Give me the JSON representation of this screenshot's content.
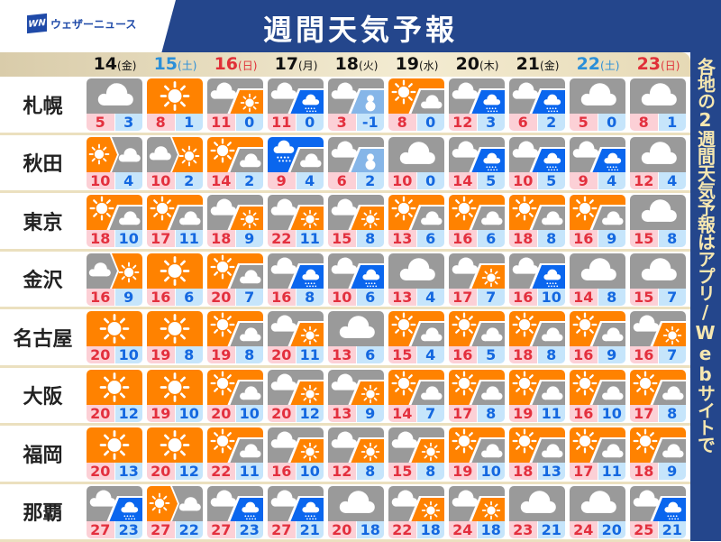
{
  "header": {
    "logo_mark": "WN",
    "logo_text": "ウェザーニュース",
    "title": "週間天気予報"
  },
  "side_text": "各地の2週間天気予報はアプリ/Webサイトで",
  "colors": {
    "cloud": "#9a9a9a",
    "sun": "#ff8200",
    "rain": "#0a66ee",
    "snow": "#86b6e8",
    "weekday": "#111111",
    "saturday": "#2b8fd8",
    "sunday": "#e03038",
    "high": "#e3303e",
    "low": "#1468e0"
  },
  "dates": [
    {
      "day": "14",
      "weekday": "(金)",
      "kind": "weekday"
    },
    {
      "day": "15",
      "weekday": "(土)",
      "kind": "saturday"
    },
    {
      "day": "16",
      "weekday": "(日)",
      "kind": "sunday"
    },
    {
      "day": "17",
      "weekday": "(月)",
      "kind": "weekday"
    },
    {
      "day": "18",
      "weekday": "(火)",
      "kind": "weekday"
    },
    {
      "day": "19",
      "weekday": "(水)",
      "kind": "weekday"
    },
    {
      "day": "20",
      "weekday": "(木)",
      "kind": "weekday"
    },
    {
      "day": "21",
      "weekday": "(金)",
      "kind": "weekday"
    },
    {
      "day": "22",
      "weekday": "(土)",
      "kind": "saturday"
    },
    {
      "day": "23",
      "weekday": "(日)",
      "kind": "sunday"
    }
  ],
  "cities": [
    {
      "name": "札幌",
      "days": [
        {
          "w": "cloud",
          "hi": "5",
          "lo": "3"
        },
        {
          "w": "sun",
          "hi": "8",
          "lo": "1"
        },
        {
          "w": "cloud/sun",
          "hi": "11",
          "lo": "0"
        },
        {
          "w": "cloud/rain",
          "hi": "11",
          "lo": "0"
        },
        {
          "w": "cloud/snow",
          "hi": "3",
          "lo": "-1"
        },
        {
          "w": "sun/cloud",
          "hi": "8",
          "lo": "0"
        },
        {
          "w": "cloud/rain",
          "hi": "12",
          "lo": "3"
        },
        {
          "w": "cloud/rain",
          "hi": "6",
          "lo": "2"
        },
        {
          "w": "cloud",
          "hi": "5",
          "lo": "0"
        },
        {
          "w": "cloud",
          "hi": "8",
          "lo": "1"
        }
      ]
    },
    {
      "name": "秋田",
      "days": [
        {
          "w": "sun>cloud",
          "hi": "10",
          "lo": "4"
        },
        {
          "w": "cloud>sun",
          "hi": "10",
          "lo": "2"
        },
        {
          "w": "sun/cloud",
          "hi": "14",
          "lo": "2"
        },
        {
          "w": "rain/cloud",
          "hi": "9",
          "lo": "4"
        },
        {
          "w": "cloud/snow",
          "hi": "6",
          "lo": "2"
        },
        {
          "w": "cloud",
          "hi": "10",
          "lo": "0"
        },
        {
          "w": "cloud/rain",
          "hi": "14",
          "lo": "5"
        },
        {
          "w": "cloud/rain",
          "hi": "10",
          "lo": "5"
        },
        {
          "w": "cloud/rain",
          "hi": "9",
          "lo": "4"
        },
        {
          "w": "cloud",
          "hi": "12",
          "lo": "4"
        }
      ]
    },
    {
      "name": "東京",
      "days": [
        {
          "w": "sun/cloud",
          "hi": "18",
          "lo": "10"
        },
        {
          "w": "sun/cloud",
          "hi": "17",
          "lo": "11"
        },
        {
          "w": "cloud/sun",
          "hi": "18",
          "lo": "9"
        },
        {
          "w": "cloud/sun",
          "hi": "22",
          "lo": "11"
        },
        {
          "w": "cloud/sun",
          "hi": "15",
          "lo": "8"
        },
        {
          "w": "sun/cloud",
          "hi": "13",
          "lo": "6"
        },
        {
          "w": "sun/cloud",
          "hi": "16",
          "lo": "6"
        },
        {
          "w": "sun/cloud",
          "hi": "18",
          "lo": "8"
        },
        {
          "w": "sun/cloud",
          "hi": "16",
          "lo": "9"
        },
        {
          "w": "cloud",
          "hi": "15",
          "lo": "8"
        }
      ]
    },
    {
      "name": "金沢",
      "days": [
        {
          "w": "cloud>sun",
          "hi": "16",
          "lo": "9"
        },
        {
          "w": "sun",
          "hi": "16",
          "lo": "6"
        },
        {
          "w": "sun/cloud",
          "hi": "20",
          "lo": "7"
        },
        {
          "w": "cloud/rain",
          "hi": "16",
          "lo": "8"
        },
        {
          "w": "cloud/rain",
          "hi": "10",
          "lo": "6"
        },
        {
          "w": "cloud",
          "hi": "13",
          "lo": "4"
        },
        {
          "w": "cloud/sun",
          "hi": "17",
          "lo": "7"
        },
        {
          "w": "cloud/rain",
          "hi": "16",
          "lo": "10"
        },
        {
          "w": "cloud",
          "hi": "14",
          "lo": "8"
        },
        {
          "w": "cloud",
          "hi": "15",
          "lo": "7"
        }
      ]
    },
    {
      "name": "名古屋",
      "days": [
        {
          "w": "sun",
          "hi": "20",
          "lo": "10"
        },
        {
          "w": "sun",
          "hi": "19",
          "lo": "8"
        },
        {
          "w": "sun/cloud",
          "hi": "19",
          "lo": "8"
        },
        {
          "w": "cloud/sun",
          "hi": "20",
          "lo": "11"
        },
        {
          "w": "cloud",
          "hi": "13",
          "lo": "6"
        },
        {
          "w": "sun/cloud",
          "hi": "15",
          "lo": "4"
        },
        {
          "w": "sun/cloud",
          "hi": "16",
          "lo": "5"
        },
        {
          "w": "sun/cloud",
          "hi": "18",
          "lo": "8"
        },
        {
          "w": "sun/cloud",
          "hi": "16",
          "lo": "9"
        },
        {
          "w": "cloud/sun",
          "hi": "16",
          "lo": "7"
        }
      ]
    },
    {
      "name": "大阪",
      "days": [
        {
          "w": "sun",
          "hi": "20",
          "lo": "12"
        },
        {
          "w": "sun",
          "hi": "19",
          "lo": "10"
        },
        {
          "w": "sun/cloud",
          "hi": "20",
          "lo": "10"
        },
        {
          "w": "cloud/sun",
          "hi": "20",
          "lo": "12"
        },
        {
          "w": "cloud/sun",
          "hi": "13",
          "lo": "9"
        },
        {
          "w": "sun/cloud",
          "hi": "14",
          "lo": "7"
        },
        {
          "w": "sun/cloud",
          "hi": "17",
          "lo": "8"
        },
        {
          "w": "sun/cloud",
          "hi": "19",
          "lo": "11"
        },
        {
          "w": "sun/cloud",
          "hi": "16",
          "lo": "10"
        },
        {
          "w": "sun/cloud",
          "hi": "17",
          "lo": "8"
        }
      ]
    },
    {
      "name": "福岡",
      "days": [
        {
          "w": "sun",
          "hi": "20",
          "lo": "13"
        },
        {
          "w": "sun",
          "hi": "20",
          "lo": "12"
        },
        {
          "w": "sun/cloud",
          "hi": "22",
          "lo": "11"
        },
        {
          "w": "cloud/sun",
          "hi": "16",
          "lo": "10"
        },
        {
          "w": "cloud/sun",
          "hi": "12",
          "lo": "8"
        },
        {
          "w": "cloud/sun",
          "hi": "15",
          "lo": "8"
        },
        {
          "w": "sun/cloud",
          "hi": "19",
          "lo": "10"
        },
        {
          "w": "sun/cloud",
          "hi": "18",
          "lo": "13"
        },
        {
          "w": "sun/cloud",
          "hi": "17",
          "lo": "11"
        },
        {
          "w": "sun/cloud",
          "hi": "18",
          "lo": "9"
        }
      ]
    },
    {
      "name": "那覇",
      "days": [
        {
          "w": "cloud/rain",
          "hi": "27",
          "lo": "23"
        },
        {
          "w": "sun>cloud",
          "hi": "27",
          "lo": "22"
        },
        {
          "w": "cloud/rain",
          "hi": "27",
          "lo": "23"
        },
        {
          "w": "cloud/rain",
          "hi": "27",
          "lo": "21"
        },
        {
          "w": "cloud",
          "hi": "20",
          "lo": "18"
        },
        {
          "w": "cloud/sun",
          "hi": "22",
          "lo": "18"
        },
        {
          "w": "cloud/sun",
          "hi": "24",
          "lo": "18"
        },
        {
          "w": "cloud",
          "hi": "23",
          "lo": "21"
        },
        {
          "w": "cloud",
          "hi": "24",
          "lo": "20"
        },
        {
          "w": "cloud/rain",
          "hi": "25",
          "lo": "21"
        }
      ]
    }
  ]
}
